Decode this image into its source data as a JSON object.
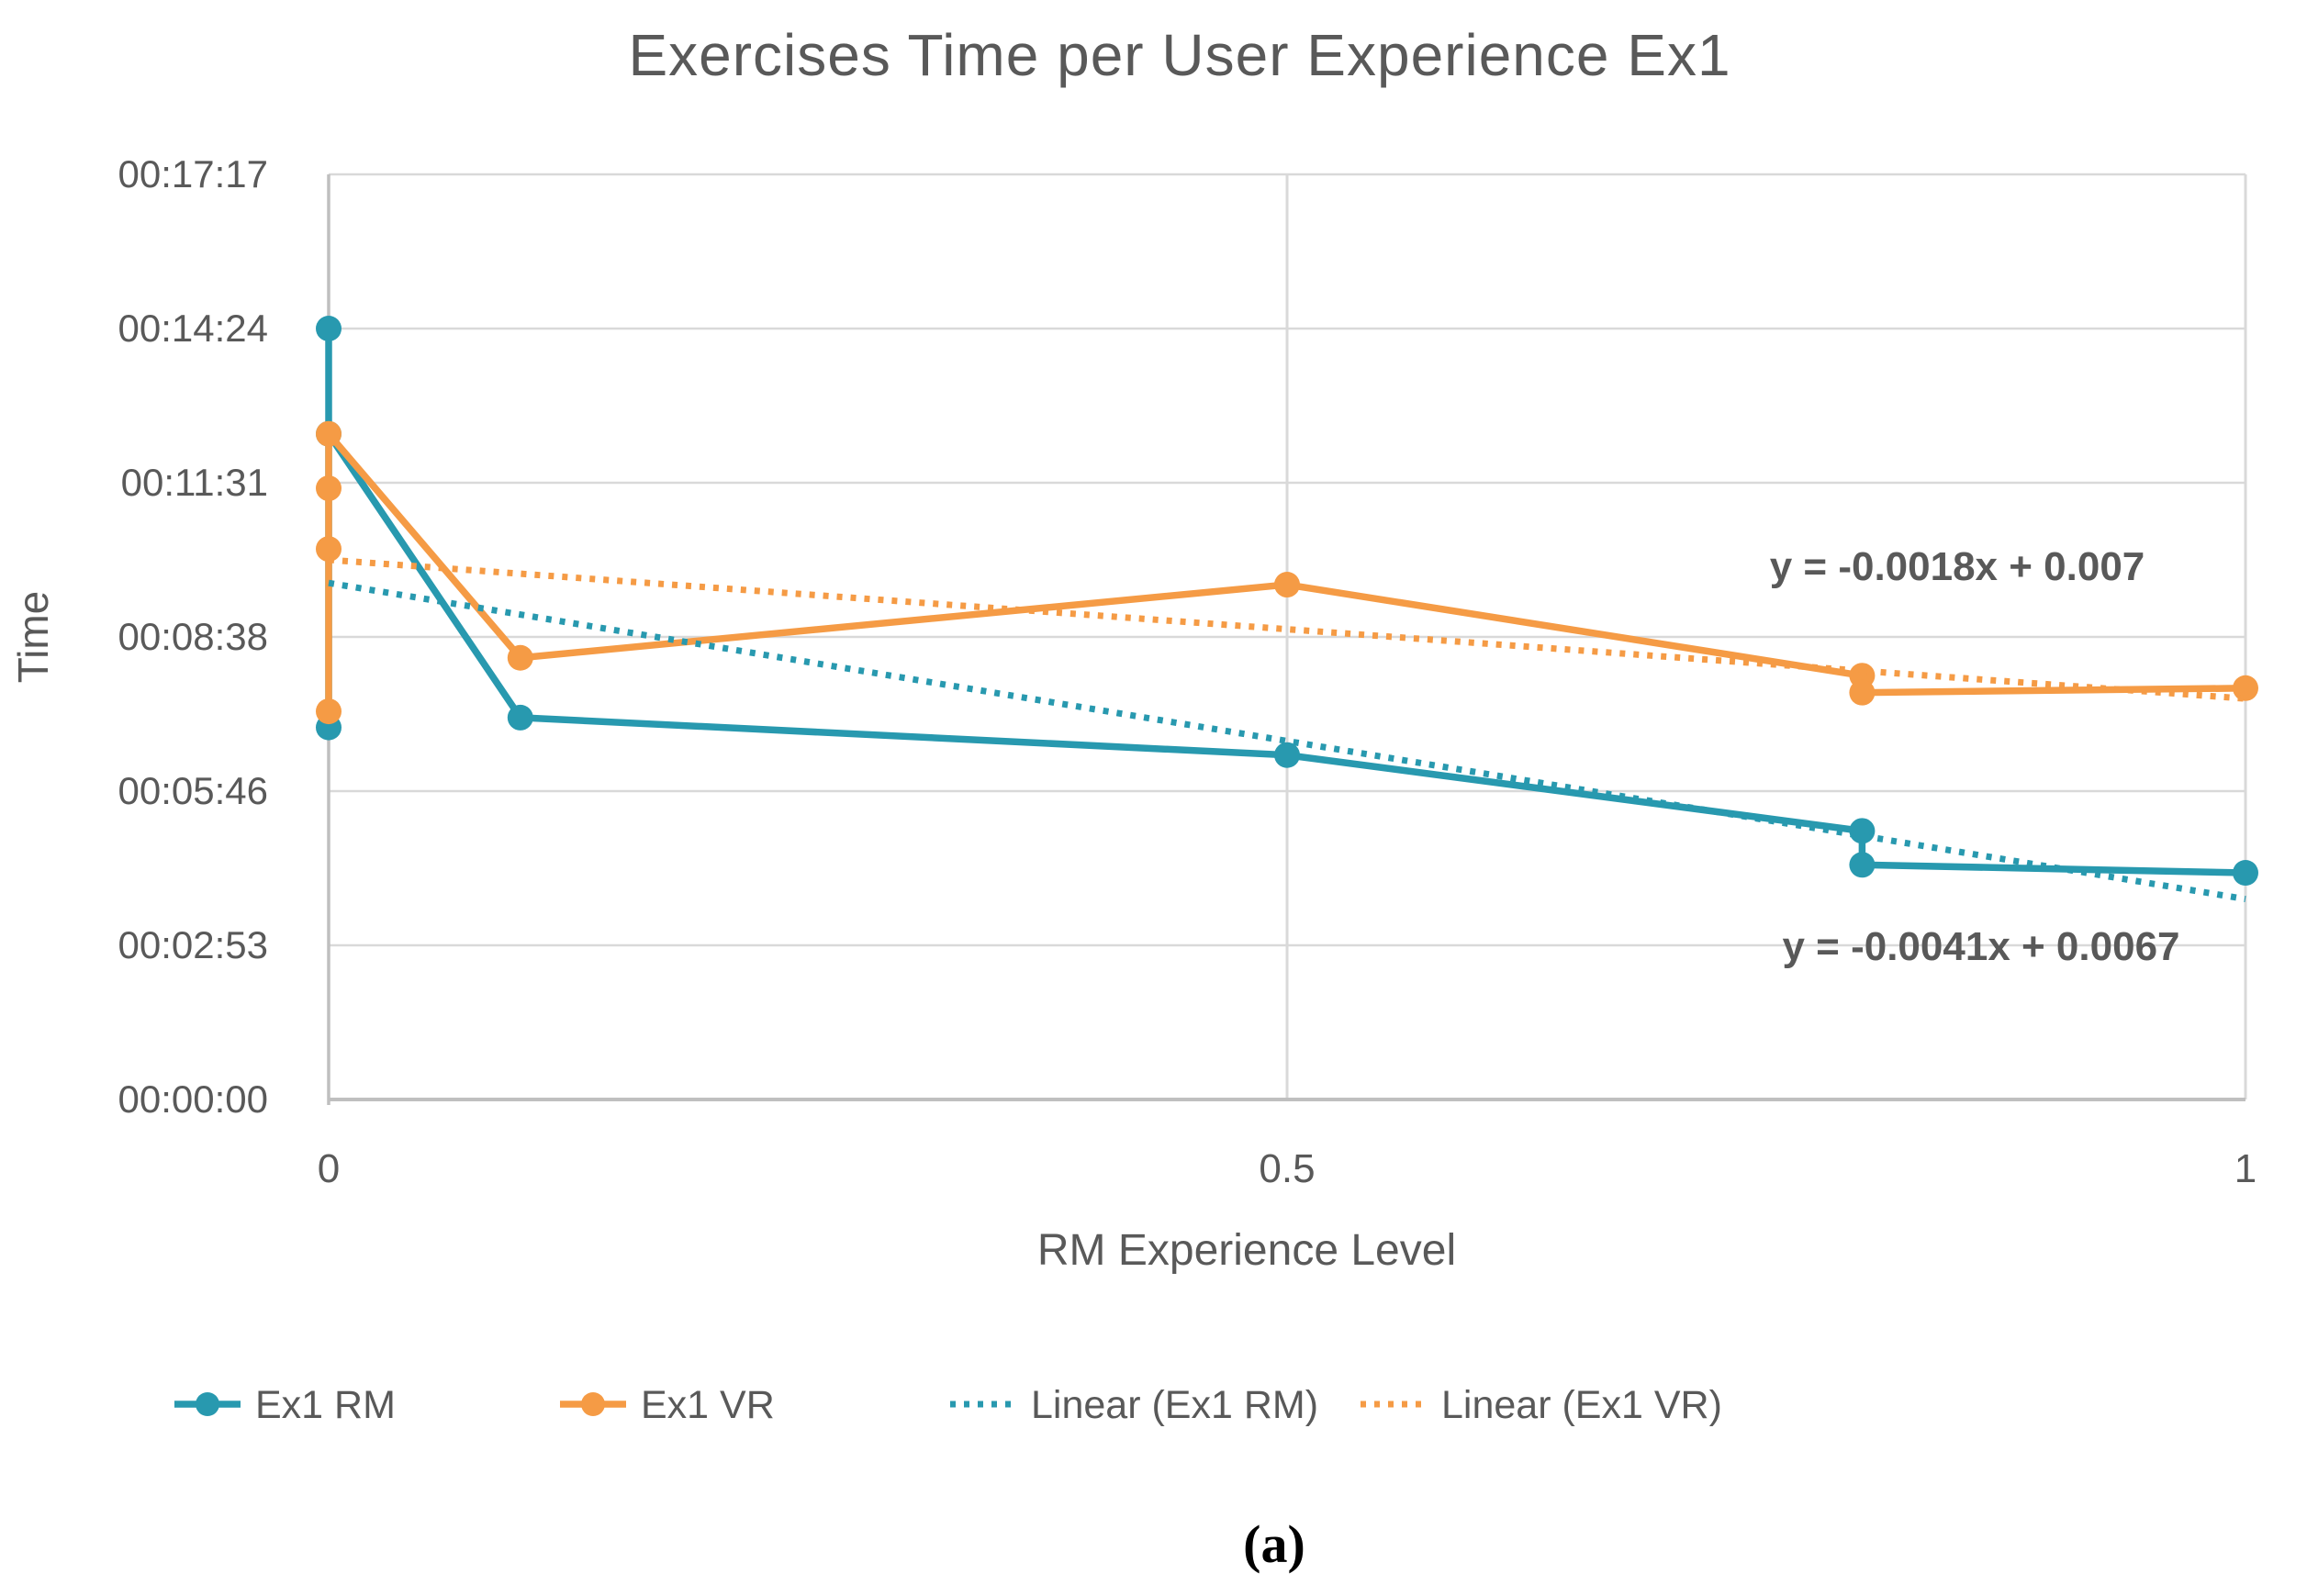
{
  "chart_data": {
    "type": "line",
    "title": "Exercises Time per User Experience Ex1",
    "xlabel": "RM Experience Level",
    "ylabel": "Time",
    "caption": "(a)",
    "grid": true,
    "legend_position": "bottom",
    "text_color": "#595959",
    "grid_color": "#D9D9D9",
    "axis_color": "#BFBFBF",
    "x_axis": {
      "min": 0,
      "max": 1,
      "ticks": [
        {
          "value": 0,
          "label": "0"
        },
        {
          "value": 0.5,
          "label": "0.5"
        },
        {
          "value": 1,
          "label": "1"
        }
      ]
    },
    "y_axis": {
      "min_seconds": 0,
      "max_seconds": 1036.8,
      "ticks": [
        {
          "seconds": 0,
          "label": "00:00:00"
        },
        {
          "seconds": 172.8,
          "label": "00:02:53"
        },
        {
          "seconds": 345.6,
          "label": "00:05:46"
        },
        {
          "seconds": 518.4,
          "label": "00:08:38"
        },
        {
          "seconds": 691.2,
          "label": "00:11:31"
        },
        {
          "seconds": 864,
          "label": "00:14:24"
        },
        {
          "seconds": 1036.8,
          "label": "00:17:17"
        }
      ]
    },
    "series": [
      {
        "name": "Ex1 RM",
        "color": "#2899AF",
        "marker": "circle",
        "points": [
          {
            "x": 0,
            "time": "00:06:57",
            "seconds": 417
          },
          {
            "x": 0,
            "time": "00:14:24",
            "seconds": 864
          },
          {
            "x": 0,
            "time": "00:12:26",
            "seconds": 746
          },
          {
            "x": 0.1,
            "time": "00:07:08",
            "seconds": 428
          },
          {
            "x": 0.5,
            "time": "00:06:26",
            "seconds": 386
          },
          {
            "x": 0.8,
            "time": "00:05:01",
            "seconds": 301
          },
          {
            "x": 0.8,
            "time": "00:04:23",
            "seconds": 263
          },
          {
            "x": 1,
            "time": "00:04:14",
            "seconds": 254
          }
        ]
      },
      {
        "name": "Ex1 VR",
        "color": "#F59B45",
        "marker": "circle",
        "points": [
          {
            "x": 0,
            "time": "00:07:15",
            "seconds": 435
          },
          {
            "x": 0,
            "time": "00:10:17",
            "seconds": 617
          },
          {
            "x": 0,
            "time": "00:11:25",
            "seconds": 685
          },
          {
            "x": 0,
            "time": "00:12:26",
            "seconds": 746
          },
          {
            "x": 0.1,
            "time": "00:08:15",
            "seconds": 495
          },
          {
            "x": 0.5,
            "time": "00:09:37",
            "seconds": 577
          },
          {
            "x": 0.8,
            "time": "00:07:55",
            "seconds": 475
          },
          {
            "x": 0.8,
            "time": "00:07:36",
            "seconds": 456
          },
          {
            "x": 1,
            "time": "00:07:41",
            "seconds": 461
          }
        ]
      }
    ],
    "trendlines": [
      {
        "name": "Linear (Ex1 RM)",
        "series": "Ex1 RM",
        "color": "#2899AF",
        "equation": "y = -0.0041x + 0.0067",
        "slope_days": -0.0041,
        "intercept_days": 0.0067,
        "equation_color": "#1F5767"
      },
      {
        "name": "Linear (Ex1 VR)",
        "series": "Ex1 VR",
        "color": "#F59B45",
        "equation": "y = -0.0018x + 0.007",
        "slope_days": -0.0018,
        "intercept_days": 0.007,
        "equation_color": "#9C500B"
      }
    ],
    "legend": [
      {
        "label": "Ex1 RM",
        "style": "solid-marker",
        "color": "#2899AF"
      },
      {
        "label": "Ex1 VR",
        "style": "solid-marker",
        "color": "#F59B45"
      },
      {
        "label": "Linear (Ex1 RM)",
        "style": "dotted",
        "color": "#2899AF"
      },
      {
        "label": "Linear (Ex1 VR)",
        "style": "dotted",
        "color": "#F59B45"
      }
    ]
  }
}
